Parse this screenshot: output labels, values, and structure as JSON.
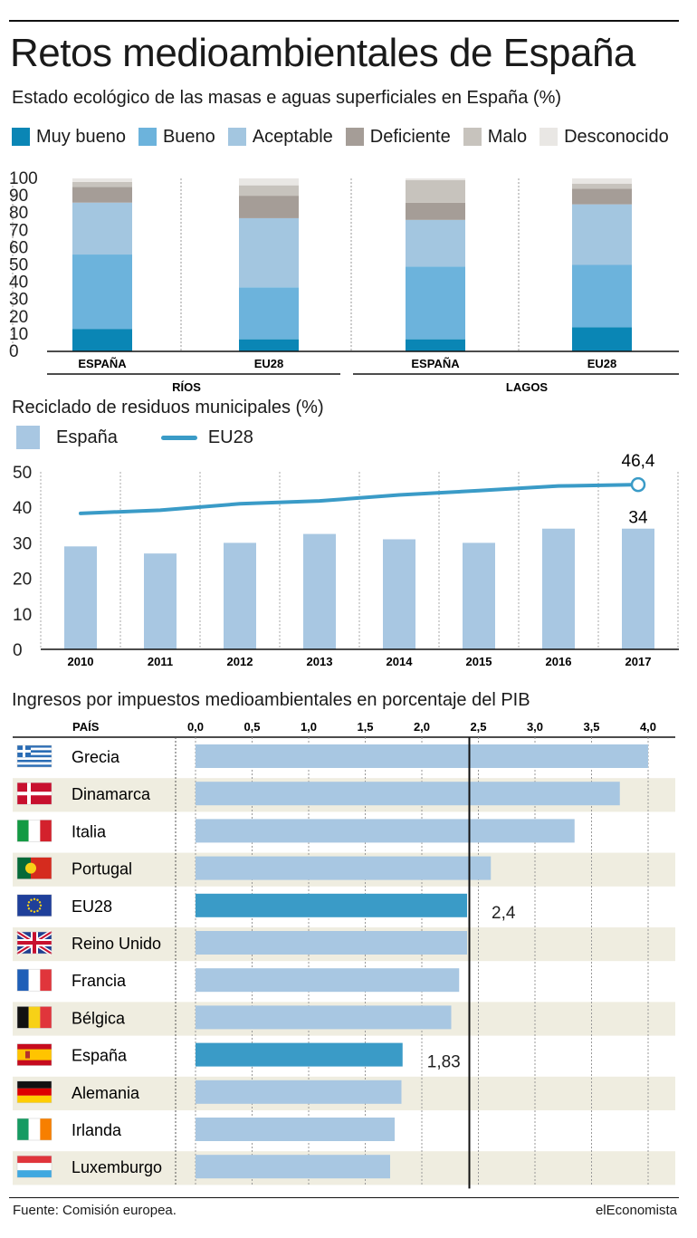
{
  "title": "Retos medioambientales de España",
  "brand": "elEconomista",
  "source": "Fuente: Comisión europea.",
  "colors": {
    "muy_bueno": "#0a86b5",
    "bueno": "#6cb3dc",
    "aceptable": "#a3c6e0",
    "deficiente": "#a59d97",
    "malo": "#c7c3bd",
    "desconocido": "#e9e7e4",
    "bar_light": "#a8c7e2",
    "bar_highlight": "#3a9bc7",
    "line": "#3a9bc7",
    "stripe": "#efede0"
  },
  "section1": {
    "subtitle": "Estado ecológico de las masas e aguas superficiales en España (%)",
    "legend": [
      "Muy bueno",
      "Bueno",
      "Aceptable",
      "Deficiente",
      "Malo",
      "Desconocido"
    ],
    "group_labels": [
      "RÍOS",
      "LAGOS"
    ]
  },
  "section2": {
    "subtitle": "Reciclado de residuos municipales (%)",
    "legend_bar": "España",
    "legend_line": "EU28"
  },
  "section3": {
    "subtitle": "Ingresos por impuestos medioambientales en porcentaje del PIB",
    "country_header": "PAÍS"
  },
  "chart_data": [
    {
      "type": "bar",
      "stacked": true,
      "categories": [
        "ESPAÑA",
        "EU28",
        "ESPAÑA",
        "EU28"
      ],
      "groups": [
        "RÍOS",
        "RÍOS",
        "LAGOS",
        "LAGOS"
      ],
      "series": [
        {
          "name": "Muy bueno",
          "values": [
            13,
            7,
            7,
            14
          ]
        },
        {
          "name": "Bueno",
          "values": [
            43,
            30,
            42,
            36
          ]
        },
        {
          "name": "Aceptable",
          "values": [
            30,
            40,
            27,
            35
          ]
        },
        {
          "name": "Deficiente",
          "values": [
            9,
            13,
            10,
            9
          ]
        },
        {
          "name": "Malo",
          "values": [
            3,
            6,
            13,
            3
          ]
        },
        {
          "name": "Desconocido",
          "values": [
            2,
            4,
            1,
            3
          ]
        }
      ],
      "yticks": [
        "0",
        "10",
        "20",
        "30",
        "40",
        "50",
        "60",
        "70",
        "80",
        "90",
        "100"
      ],
      "ylim": [
        0,
        100
      ]
    },
    {
      "type": "bar",
      "categories": [
        "2010",
        "2011",
        "2012",
        "2013",
        "2014",
        "2015",
        "2016",
        "2017"
      ],
      "series": [
        {
          "name": "España",
          "kind": "bar",
          "values": [
            29,
            27,
            30,
            32.5,
            31,
            30,
            34,
            34
          ]
        },
        {
          "name": "EU28",
          "kind": "line",
          "values": [
            38.3,
            39.2,
            41,
            41.8,
            43.5,
            44.7,
            46,
            46.4
          ]
        }
      ],
      "annotations": {
        "eu28_last": "46,4",
        "spain_last": "34"
      },
      "yticks": [
        "0",
        "10",
        "20",
        "30",
        "40",
        "50"
      ],
      "ylim": [
        0,
        50
      ]
    },
    {
      "type": "bar",
      "orientation": "horizontal",
      "categories": [
        "Grecia",
        "Dinamarca",
        "Italia",
        "Portugal",
        "EU28",
        "Reino Unido",
        "Francia",
        "Bélgica",
        "España",
        "Alemania",
        "Irlanda",
        "Luxemburgo"
      ],
      "values": [
        4.0,
        3.75,
        3.35,
        2.61,
        2.4,
        2.4,
        2.33,
        2.26,
        1.83,
        1.82,
        1.76,
        1.72
      ],
      "highlight": [
        "EU28",
        "España"
      ],
      "annotations": {
        "EU28": "2,4",
        "España": "1,83"
      },
      "reference_value": 2.42,
      "xticks": [
        "0,0",
        "0,5",
        "1,0",
        "1,5",
        "2,0",
        "2,5",
        "3,0",
        "3,5",
        "4,0"
      ],
      "xlim": [
        0,
        4
      ]
    }
  ]
}
